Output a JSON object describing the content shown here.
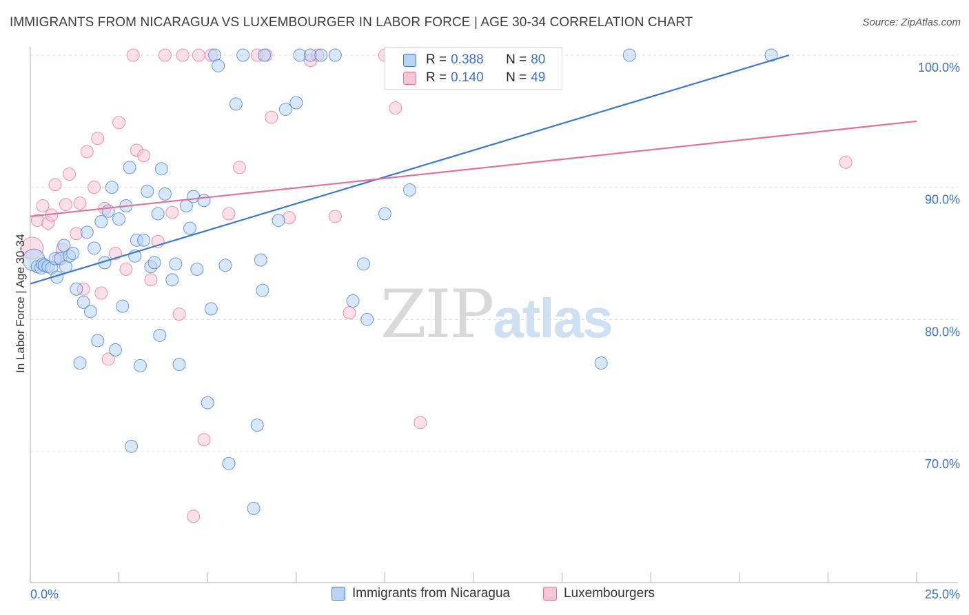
{
  "title": "IMMIGRANTS FROM NICARAGUA VS LUXEMBOURGER IN LABOR FORCE | AGE 30-34 CORRELATION CHART",
  "source": "Source: ZipAtlas.com",
  "watermark": {
    "zip": "ZIP",
    "atlas": "atlas"
  },
  "legend_top": {
    "rows": [
      {
        "r_label": "R = ",
        "r_value": "0.388",
        "n_label": "N = ",
        "n_value": "80"
      },
      {
        "r_label": "R = ",
        "r_value": "0.140",
        "n_label": "N = ",
        "n_value": "49"
      }
    ]
  },
  "chart_data": {
    "type": "scatter",
    "title": "IMMIGRANTS FROM NICARAGUA VS LUXEMBOURGER IN LABOR FORCE | AGE 30-34 CORRELATION CHART",
    "xlabel": "",
    "ylabel": "In Labor Force | Age 30-34",
    "xlim": [
      0,
      25
    ],
    "ylim": [
      60,
      100
    ],
    "x_tick_labels": [
      "0.0%",
      "25.0%"
    ],
    "y_ticks": [
      70,
      80,
      90,
      100
    ],
    "y_tick_labels": [
      "70.0%",
      "80.0%",
      "90.0%",
      "100.0%"
    ],
    "grid": true,
    "colors": {
      "blue": "#3b78d0",
      "blue_fill": "#b9d3f5",
      "pink": "#e2709a",
      "pink_fill": "#f8c6d6",
      "tick_text": "#3b72c4"
    },
    "series": [
      {
        "name": "Immigrants from Nicaragua",
        "color": "#3b78d0",
        "r": 0.388,
        "n": 80,
        "trendline": {
          "x": [
            0,
            21.4
          ],
          "y": [
            82.7,
            100.0
          ]
        },
        "points": [
          [
            0.1,
            84.5
          ],
          [
            0.2,
            84.0
          ],
          [
            0.3,
            83.9
          ],
          [
            0.35,
            84.2
          ],
          [
            0.4,
            84.1
          ],
          [
            0.5,
            84.0
          ],
          [
            0.6,
            83.9
          ],
          [
            0.7,
            84.6
          ],
          [
            0.75,
            83.2
          ],
          [
            0.85,
            84.6
          ],
          [
            0.95,
            85.6
          ],
          [
            1.0,
            84.0
          ],
          [
            1.1,
            84.8
          ],
          [
            1.2,
            85.0
          ],
          [
            1.3,
            82.3
          ],
          [
            1.4,
            76.7
          ],
          [
            1.5,
            81.3
          ],
          [
            1.6,
            86.6
          ],
          [
            1.7,
            80.6
          ],
          [
            1.8,
            85.4
          ],
          [
            1.9,
            78.4
          ],
          [
            2.0,
            87.4
          ],
          [
            2.1,
            84.3
          ],
          [
            2.2,
            88.2
          ],
          [
            2.3,
            90.0
          ],
          [
            2.4,
            77.7
          ],
          [
            2.5,
            87.6
          ],
          [
            2.6,
            81.0
          ],
          [
            2.7,
            88.6
          ],
          [
            2.8,
            91.5
          ],
          [
            2.85,
            70.4
          ],
          [
            2.95,
            84.8
          ],
          [
            3.0,
            86.0
          ],
          [
            3.1,
            76.5
          ],
          [
            3.2,
            86.0
          ],
          [
            3.3,
            89.7
          ],
          [
            3.4,
            84.0
          ],
          [
            3.5,
            84.3
          ],
          [
            3.6,
            88.0
          ],
          [
            3.65,
            78.8
          ],
          [
            3.7,
            91.4
          ],
          [
            3.8,
            89.5
          ],
          [
            4.0,
            83.0
          ],
          [
            4.1,
            84.2
          ],
          [
            4.2,
            76.6
          ],
          [
            4.4,
            88.6
          ],
          [
            4.5,
            86.9
          ],
          [
            4.6,
            89.3
          ],
          [
            4.7,
            83.8
          ],
          [
            4.9,
            89.0
          ],
          [
            5.0,
            73.7
          ],
          [
            5.1,
            80.8
          ],
          [
            5.2,
            100.0
          ],
          [
            5.3,
            99.2
          ],
          [
            5.5,
            84.1
          ],
          [
            5.6,
            69.1
          ],
          [
            5.8,
            96.3
          ],
          [
            6.0,
            100.0
          ],
          [
            6.3,
            65.7
          ],
          [
            6.4,
            72.0
          ],
          [
            6.5,
            84.5
          ],
          [
            6.55,
            82.2
          ],
          [
            6.6,
            100.0
          ],
          [
            7.0,
            87.5
          ],
          [
            7.2,
            95.9
          ],
          [
            7.5,
            96.4
          ],
          [
            7.6,
            100.0
          ],
          [
            7.9,
            100.0
          ],
          [
            8.2,
            100.0
          ],
          [
            8.6,
            100.0
          ],
          [
            9.1,
            81.4
          ],
          [
            9.4,
            84.2
          ],
          [
            9.5,
            80.0
          ],
          [
            10.0,
            88.0
          ],
          [
            10.4,
            100.0
          ],
          [
            10.5,
            98.7
          ],
          [
            10.7,
            89.8
          ],
          [
            16.1,
            76.7
          ],
          [
            16.9,
            100.0
          ],
          [
            20.9,
            100.0
          ]
        ]
      },
      {
        "name": "Luxembourgers",
        "color": "#e2709a",
        "r": 0.14,
        "n": 49,
        "trendline": {
          "x": [
            0,
            25
          ],
          "y": [
            87.8,
            95.0
          ]
        },
        "points": [
          [
            0.05,
            85.4
          ],
          [
            0.2,
            87.5
          ],
          [
            0.35,
            88.6
          ],
          [
            0.5,
            87.3
          ],
          [
            0.6,
            87.9
          ],
          [
            0.7,
            90.2
          ],
          [
            0.8,
            84.6
          ],
          [
            0.9,
            85.3
          ],
          [
            1.0,
            88.7
          ],
          [
            1.1,
            91.0
          ],
          [
            1.3,
            86.5
          ],
          [
            1.4,
            88.8
          ],
          [
            1.5,
            82.3
          ],
          [
            1.6,
            92.7
          ],
          [
            1.8,
            90.0
          ],
          [
            1.9,
            93.7
          ],
          [
            2.0,
            82.0
          ],
          [
            2.1,
            88.4
          ],
          [
            2.2,
            77.0
          ],
          [
            2.4,
            85.0
          ],
          [
            2.5,
            94.9
          ],
          [
            2.7,
            83.8
          ],
          [
            2.9,
            100.0
          ],
          [
            3.0,
            92.8
          ],
          [
            3.2,
            92.4
          ],
          [
            3.4,
            83.0
          ],
          [
            3.6,
            85.9
          ],
          [
            3.8,
            100.0
          ],
          [
            4.0,
            88.1
          ],
          [
            4.2,
            80.4
          ],
          [
            4.3,
            100.0
          ],
          [
            4.6,
            65.1
          ],
          [
            4.75,
            100.0
          ],
          [
            4.9,
            70.9
          ],
          [
            5.1,
            100.0
          ],
          [
            5.6,
            88.0
          ],
          [
            5.9,
            91.5
          ],
          [
            6.4,
            100.0
          ],
          [
            6.65,
            100.0
          ],
          [
            6.8,
            95.3
          ],
          [
            7.3,
            87.7
          ],
          [
            7.9,
            99.6
          ],
          [
            8.1,
            100.0
          ],
          [
            8.6,
            87.8
          ],
          [
            9.0,
            80.5
          ],
          [
            10.0,
            100.0
          ],
          [
            10.3,
            96.0
          ],
          [
            11.0,
            72.2
          ],
          [
            23.0,
            91.9
          ]
        ]
      }
    ]
  },
  "legend_bottom": [
    {
      "label": "Immigrants from Nicaragua"
    },
    {
      "label": "Luxembourgers"
    }
  ]
}
